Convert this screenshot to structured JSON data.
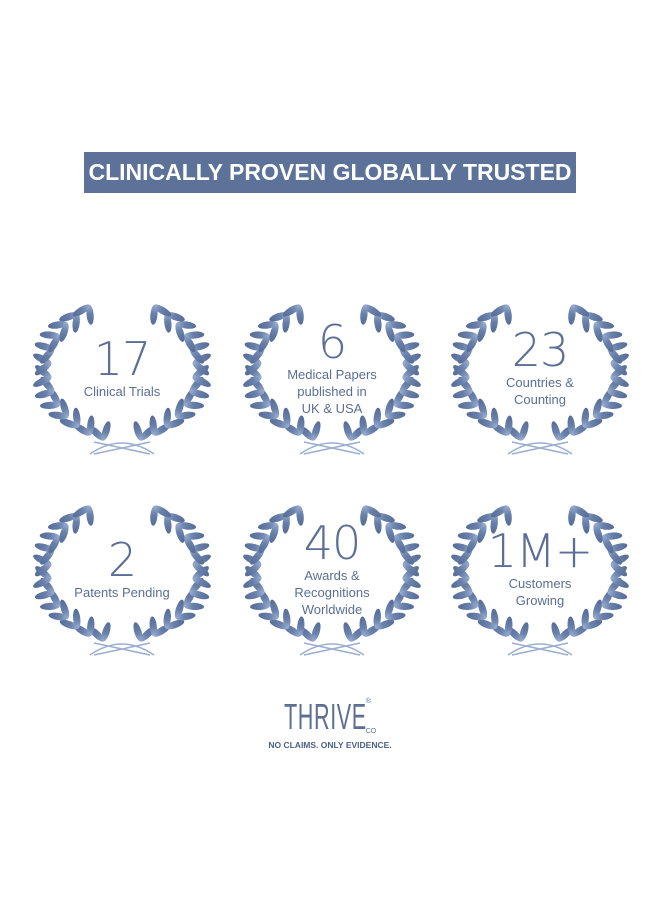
{
  "header": {
    "title": "CLINICALLY PROVEN GLOBALLY TRUSTED"
  },
  "colors": {
    "banner": "#5d7299",
    "wreath_dark": "#566c97",
    "wreath_light": "#9aaed0",
    "text": "#5b6e96"
  },
  "stats": [
    {
      "number": "17",
      "label": [
        "Clinical Trials"
      ]
    },
    {
      "number": "6",
      "label": [
        "Medical Papers",
        "published in",
        "UK & USA"
      ]
    },
    {
      "number": "23",
      "label": [
        "Countries &",
        "Counting"
      ]
    },
    {
      "number": "2",
      "label": [
        "Patents Pending"
      ]
    },
    {
      "number": "40",
      "label": [
        "Awards &",
        "Recognitions",
        "Worldwide"
      ]
    },
    {
      "number": "1M+",
      "label": [
        "Customers",
        "Growing"
      ]
    }
  ],
  "icons": {
    "wreath": "laurel-wreath-icon"
  },
  "logo": {
    "brand": "THRIVE",
    "suffix": "CO",
    "registered": "®",
    "tagline": "NO CLAIMS. ONLY EVIDENCE."
  }
}
